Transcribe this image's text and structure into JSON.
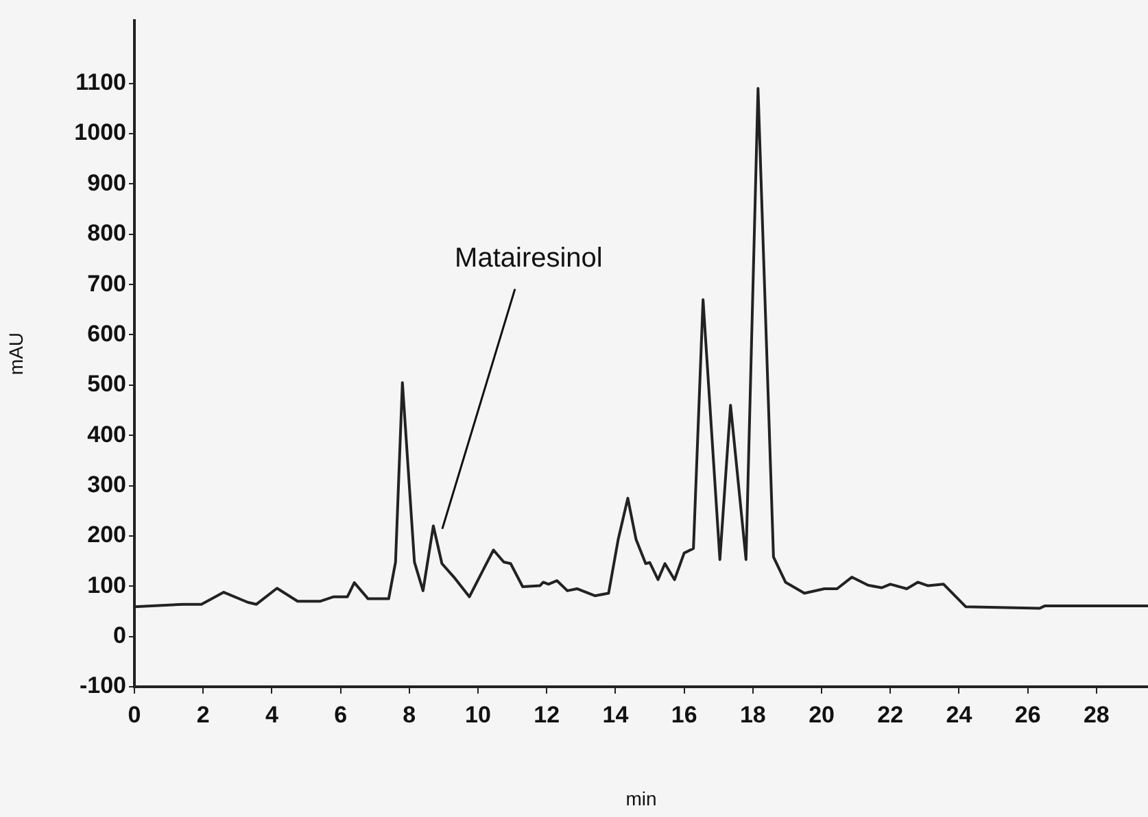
{
  "chart_data": {
    "type": "line",
    "xlabel": "min",
    "ylabel": "mAU",
    "xlim": [
      0,
      29.5
    ],
    "ylim": [
      -100,
      1225
    ],
    "xticks": [
      0,
      2,
      4,
      6,
      8,
      10,
      12,
      14,
      16,
      18,
      20,
      22,
      24,
      26,
      28
    ],
    "yticks": [
      -100,
      0,
      100,
      200,
      300,
      400,
      500,
      600,
      700,
      800,
      900,
      1000,
      1100
    ],
    "grid": false,
    "legend": false,
    "marker": "none",
    "line_style": "solid",
    "annotations": [
      {
        "text": "Matairesinol",
        "x": 8.96,
        "y": 214
      }
    ],
    "series": [
      {
        "color": "#222222",
        "x": [
          0,
          1.4,
          1.95,
          2.6,
          3.3,
          3.55,
          4.15,
          4.75,
          5.4,
          5.8,
          6.2,
          6.4,
          6.8,
          7.4,
          7.6,
          7.8,
          8.15,
          8.4,
          8.7,
          8.95,
          9.3,
          9.75,
          10.2,
          10.45,
          10.75,
          10.95,
          11.3,
          11.8,
          11.9,
          12.05,
          12.3,
          12.6,
          12.88,
          13.4,
          13.8,
          14.08,
          14.36,
          14.6,
          14.88,
          15.0,
          15.24,
          15.44,
          15.72,
          16.0,
          16.27,
          16.55,
          17.04,
          17.35,
          17.8,
          18.15,
          18.6,
          18.95,
          19.5,
          20.08,
          20.45,
          20.88,
          21.35,
          21.75,
          22.0,
          22.48,
          22.8,
          23.1,
          23.55,
          24.2,
          26.35,
          26.5,
          29.5
        ],
        "values": [
          59,
          64,
          64,
          88,
          68,
          64,
          96,
          70,
          70,
          79,
          79,
          107,
          75,
          75,
          148,
          505,
          148,
          91,
          220,
          145,
          118,
          79,
          139,
          172,
          148,
          145,
          99,
          101,
          108,
          104,
          111,
          91,
          95,
          81,
          86,
          193,
          275,
          193,
          145,
          147,
          113,
          145,
          113,
          166,
          175,
          670,
          153,
          460,
          153,
          1090,
          158,
          108,
          86,
          95,
          95,
          118,
          102,
          97,
          104,
          95,
          108,
          101,
          104,
          59,
          56,
          61,
          61
        ]
      }
    ]
  }
}
